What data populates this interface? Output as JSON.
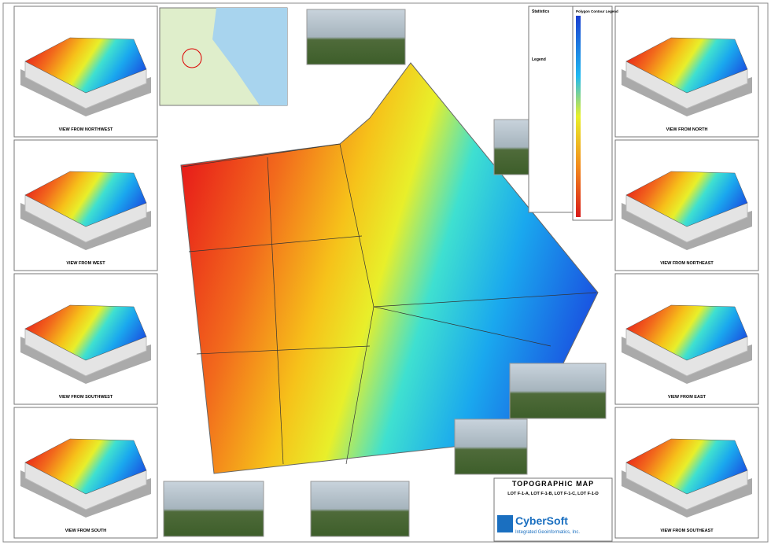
{
  "views": [
    "VIEW FROM NORTHWEST",
    "VIEW FROM WEST",
    "VIEW FROM SOUTHWEST",
    "VIEW FROM SOUTH",
    "VIEW FROM NORTH",
    "VIEW FROM NORTHEAST",
    "VIEW FROM EAST",
    "VIEW FROM SOUTHEAST"
  ],
  "legend": {
    "statistics": "Statistics",
    "contour_title": "Polygon Contour Legend",
    "legend_title": "Legend"
  },
  "title_block": {
    "title": "TOPOGRAPHIC MAP",
    "subtitle": "LOT F-1-A, LOT F-1-B, LOT F-1-C, LOT F-1-D",
    "company": "CyberSoft",
    "company_sub": "Integrated Geoinformatics, Inc."
  }
}
